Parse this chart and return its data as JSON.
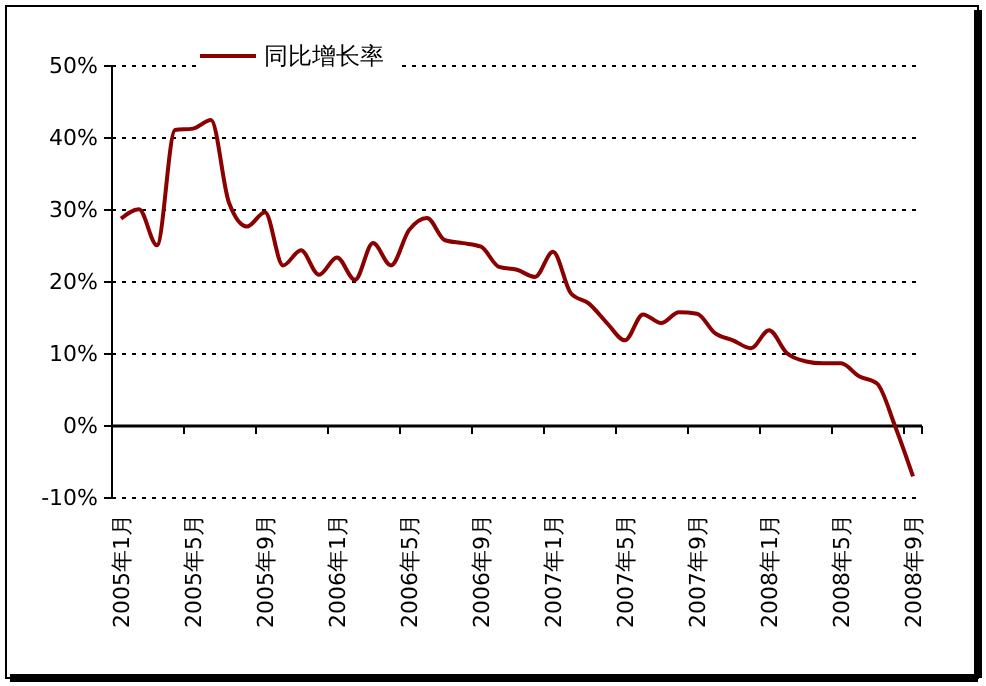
{
  "chart_data": {
    "type": "line",
    "categories": [
      "2005年1月",
      null,
      null,
      null,
      "2005年5月",
      null,
      null,
      null,
      "2005年9月",
      null,
      null,
      null,
      "2006年1月",
      null,
      null,
      null,
      "2006年5月",
      null,
      null,
      null,
      "2006年9月",
      null,
      null,
      null,
      "2007年1月",
      null,
      null,
      null,
      "2007年5月",
      null,
      null,
      null,
      "2007年9月",
      null,
      null,
      null,
      "2008年1月",
      null,
      null,
      null,
      "2008年5月",
      null,
      null,
      null,
      "2008年9月"
    ],
    "series": [
      {
        "name": "同比增长率",
        "color": "#8b0000",
        "values": [
          28.8,
          30.1,
          25.1,
          41.1,
          41.3,
          42.5,
          31,
          27.7,
          29.7,
          22.3,
          24.4,
          21,
          23.4,
          20.3,
          25.4,
          22.3,
          27.2,
          28.9,
          25.8,
          25.4,
          24.9,
          22.1,
          21.7,
          20.7,
          24.2,
          18.4,
          17,
          14.3,
          11.9,
          15.5,
          14.3,
          15.8,
          15.6,
          12.9,
          11.9,
          10.8,
          13.3,
          10.1,
          9,
          8.7,
          8.7,
          6.9,
          5.9,
          0,
          -7
        ]
      }
    ],
    "ylim": [
      -10,
      50
    ],
    "yticks": [
      {
        "value": -10,
        "label": "-10%"
      },
      {
        "value": 0,
        "label": "0%"
      },
      {
        "value": 10,
        "label": "10%"
      },
      {
        "value": 20,
        "label": "20%"
      },
      {
        "value": 30,
        "label": "30%"
      },
      {
        "value": 40,
        "label": "40%"
      },
      {
        "value": 50,
        "label": "50%"
      }
    ],
    "grid": "y",
    "legend": "top left",
    "marker": "none",
    "line_style": "solid"
  }
}
